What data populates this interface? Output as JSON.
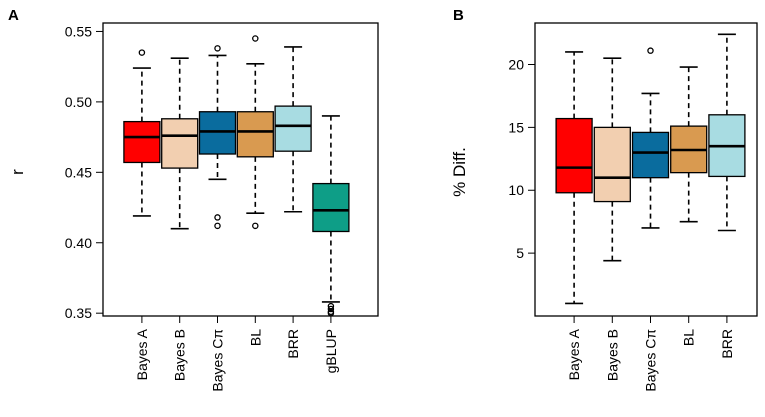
{
  "chart_data": [
    {
      "panel_label": "A",
      "type": "box",
      "title": "",
      "xlabel": "",
      "ylabel": "r",
      "ylim": [
        0.348,
        0.556
      ],
      "yticks": [
        0.35,
        0.4,
        0.45,
        0.5,
        0.55
      ],
      "ytick_labels": [
        "0.35",
        "0.40",
        "0.45",
        "0.50",
        "0.55"
      ],
      "categories": [
        "Bayes A",
        "Bayes B",
        "Bayes Cπ",
        "BL",
        "BRR",
        "gBLUP"
      ],
      "colors": [
        "#FF0000",
        "#F2CFB0",
        "#0A6C9E",
        "#D99A50",
        "#A8DCE2",
        "#0E9E87"
      ],
      "boxes": [
        {
          "whisker_low": 0.419,
          "q1": 0.457,
          "median": 0.475,
          "q3": 0.486,
          "whisker_high": 0.524,
          "outliers": [
            0.535
          ]
        },
        {
          "whisker_low": 0.41,
          "q1": 0.453,
          "median": 0.476,
          "q3": 0.488,
          "whisker_high": 0.531,
          "outliers": []
        },
        {
          "whisker_low": 0.445,
          "q1": 0.463,
          "median": 0.479,
          "q3": 0.493,
          "whisker_high": 0.533,
          "outliers": [
            0.538,
            0.418,
            0.412
          ]
        },
        {
          "whisker_low": 0.421,
          "q1": 0.461,
          "median": 0.479,
          "q3": 0.493,
          "whisker_high": 0.527,
          "outliers": [
            0.545,
            0.412
          ]
        },
        {
          "whisker_low": 0.422,
          "q1": 0.465,
          "median": 0.483,
          "q3": 0.497,
          "whisker_high": 0.539,
          "outliers": []
        },
        {
          "whisker_low": 0.358,
          "q1": 0.408,
          "median": 0.423,
          "q3": 0.442,
          "whisker_high": 0.49,
          "outliers": [
            0.355,
            0.353,
            0.351,
            0.35
          ]
        }
      ]
    },
    {
      "panel_label": "B",
      "type": "box",
      "title": "",
      "xlabel": "",
      "ylabel": "% Diff.",
      "ylim": [
        0.0,
        23.3
      ],
      "yticks": [
        5,
        10,
        15,
        20
      ],
      "ytick_labels": [
        "5",
        "10",
        "15",
        "20"
      ],
      "categories": [
        "Bayes A",
        "Bayes B",
        "Bayes Cπ",
        "BL",
        "BRR"
      ],
      "colors": [
        "#FF0000",
        "#F2CFB0",
        "#0A6C9E",
        "#D99A50",
        "#A8DCE2"
      ],
      "boxes": [
        {
          "whisker_low": 1.0,
          "q1": 9.8,
          "median": 11.8,
          "q3": 15.7,
          "whisker_high": 21.0,
          "outliers": []
        },
        {
          "whisker_low": 4.4,
          "q1": 9.1,
          "median": 11.0,
          "q3": 15.0,
          "whisker_high": 20.5,
          "outliers": []
        },
        {
          "whisker_low": 7.0,
          "q1": 11.0,
          "median": 13.0,
          "q3": 14.6,
          "whisker_high": 17.7,
          "outliers": [
            21.1
          ]
        },
        {
          "whisker_low": 7.5,
          "q1": 11.4,
          "median": 13.2,
          "q3": 15.1,
          "whisker_high": 19.8,
          "outliers": []
        },
        {
          "whisker_low": 6.8,
          "q1": 11.1,
          "median": 13.5,
          "q3": 16.0,
          "whisker_high": 22.4,
          "outliers": []
        }
      ]
    }
  ]
}
